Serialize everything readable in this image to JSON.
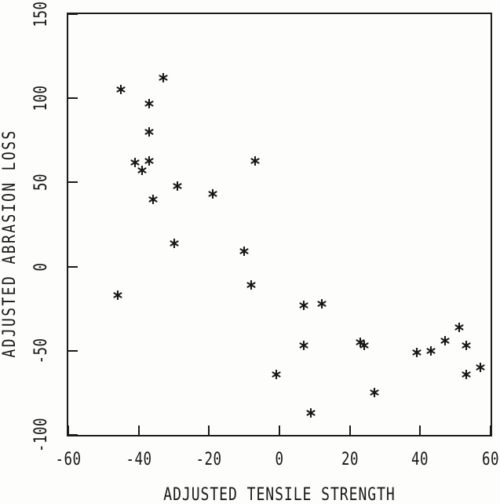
{
  "chart_data": {
    "type": "scatter",
    "title": "",
    "xlabel": "ADJUSTED TENSILE STRENGTH",
    "ylabel": "ADJUSTED ABRASION LOSS",
    "xlim": [
      -60,
      60
    ],
    "ylim": [
      -100,
      150
    ],
    "xticks": [
      -60,
      -40,
      -20,
      0,
      20,
      40,
      60
    ],
    "yticks": [
      -100,
      -50,
      0,
      50,
      100,
      150
    ],
    "grid": false,
    "legend": null,
    "marker_style": "asterisk",
    "colors": {
      "ink": "#171717",
      "background": "#fdfdfc"
    },
    "points": [
      [
        -46,
        -17
      ],
      [
        -45,
        105
      ],
      [
        -41,
        62
      ],
      [
        -39,
        57
      ],
      [
        -37,
        97
      ],
      [
        -37,
        80
      ],
      [
        -37,
        63
      ],
      [
        -36,
        40
      ],
      [
        -33,
        112
      ],
      [
        -30,
        14
      ],
      [
        -29,
        48
      ],
      [
        -19,
        43
      ],
      [
        -10,
        9
      ],
      [
        -8,
        -11
      ],
      [
        -7,
        63
      ],
      [
        -1,
        -64
      ],
      [
        7,
        -23
      ],
      [
        7,
        -47
      ],
      [
        9,
        -87
      ],
      [
        12,
        -22
      ],
      [
        23,
        -45
      ],
      [
        24,
        -47
      ],
      [
        27,
        -75
      ],
      [
        39,
        -51
      ],
      [
        43,
        -50
      ],
      [
        47,
        -44
      ],
      [
        51,
        -36
      ],
      [
        53,
        -47
      ],
      [
        53,
        -64
      ],
      [
        57,
        -60
      ]
    ]
  }
}
